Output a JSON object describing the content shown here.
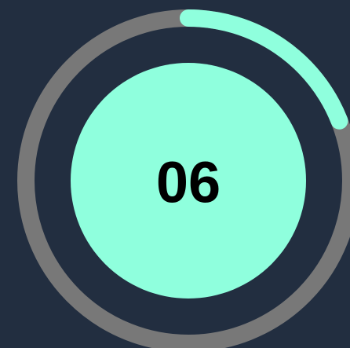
{
  "timer": {
    "value": "06",
    "progress": 0.19
  }
}
